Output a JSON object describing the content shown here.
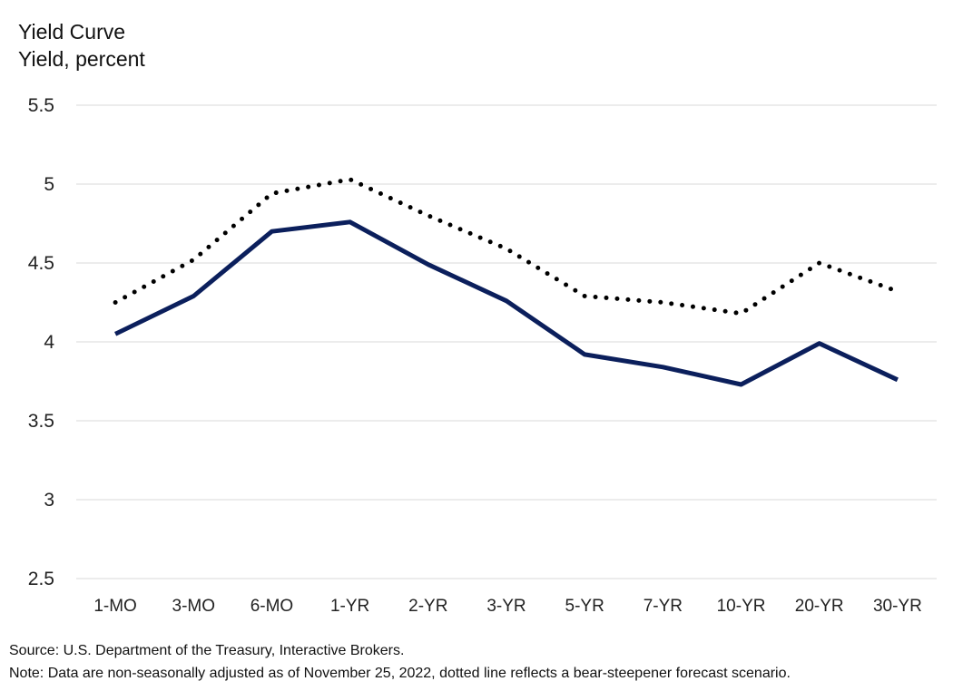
{
  "chart_data": {
    "type": "line",
    "title": "Yield Curve",
    "ylabel": "Yield, percent",
    "xlabel": "",
    "categories": [
      "1-MO",
      "3-MO",
      "6-MO",
      "1-YR",
      "2-YR",
      "3-YR",
      "5-YR",
      "7-YR",
      "10-YR",
      "20-YR",
      "30-YR"
    ],
    "yticks": [
      "2.5",
      "3",
      "3.5",
      "4",
      "4.5",
      "5",
      "5.5"
    ],
    "ylim": [
      2.5,
      5.5
    ],
    "grid": true,
    "series": [
      {
        "name": "Yield curve (Nov 25, 2022)",
        "style": "solid",
        "color": "#0b1f5c",
        "values": [
          4.05,
          4.29,
          4.7,
          4.76,
          4.49,
          4.26,
          3.92,
          3.84,
          3.73,
          3.99,
          3.76
        ]
      },
      {
        "name": "Bear-steepener forecast scenario",
        "style": "dotted",
        "color": "#000000",
        "values": [
          4.25,
          4.52,
          4.94,
          5.03,
          4.8,
          4.59,
          4.29,
          4.25,
          4.18,
          4.5,
          4.32
        ]
      }
    ]
  },
  "notes": {
    "source": "Source: U.S. Department of the Treasury, Interactive Brokers.",
    "note": "Note: Data are non-seasonally adjusted as of November 25, 2022, dotted line reflects a bear-steepener forecast scenario."
  }
}
